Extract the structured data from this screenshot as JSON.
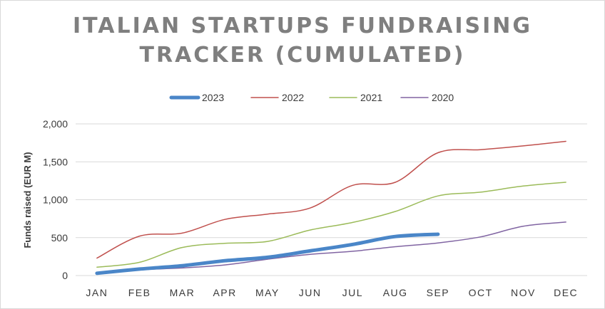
{
  "chart_data": {
    "type": "line",
    "title_lines": [
      "ITALIAN STARTUPS FUNDRAISING",
      "TRACKER (CUMULATED)"
    ],
    "ylabel": "Funds raised (EUR M)",
    "xlabel": "",
    "categories": [
      "JAN",
      "FEB",
      "MAR",
      "APR",
      "MAY",
      "JUN",
      "JUL",
      "AUG",
      "SEP",
      "OCT",
      "NOV",
      "DEC"
    ],
    "ylim": [
      0,
      2000
    ],
    "yticks": [
      0,
      500,
      1000,
      1500,
      2000
    ],
    "ytick_labels": [
      "0",
      "500",
      "1,000",
      "1,500",
      "2,000"
    ],
    "grid": true,
    "legend_position": "top",
    "series": [
      {
        "name": "2023",
        "color": "#4a86c8",
        "values": [
          30,
          85,
          130,
          195,
          240,
          325,
          410,
          515,
          545,
          null,
          null,
          null
        ]
      },
      {
        "name": "2022",
        "color": "#c0504d",
        "values": [
          230,
          520,
          560,
          740,
          810,
          890,
          1190,
          1230,
          1620,
          1660,
          1710,
          1770
        ]
      },
      {
        "name": "2021",
        "color": "#9bbb59",
        "values": [
          110,
          175,
          370,
          425,
          450,
          600,
          700,
          845,
          1050,
          1100,
          1180,
          1230
        ]
      },
      {
        "name": "2020",
        "color": "#8064a2",
        "values": [
          20,
          75,
          100,
          140,
          215,
          280,
          320,
          380,
          430,
          510,
          650,
          705
        ]
      }
    ]
  }
}
